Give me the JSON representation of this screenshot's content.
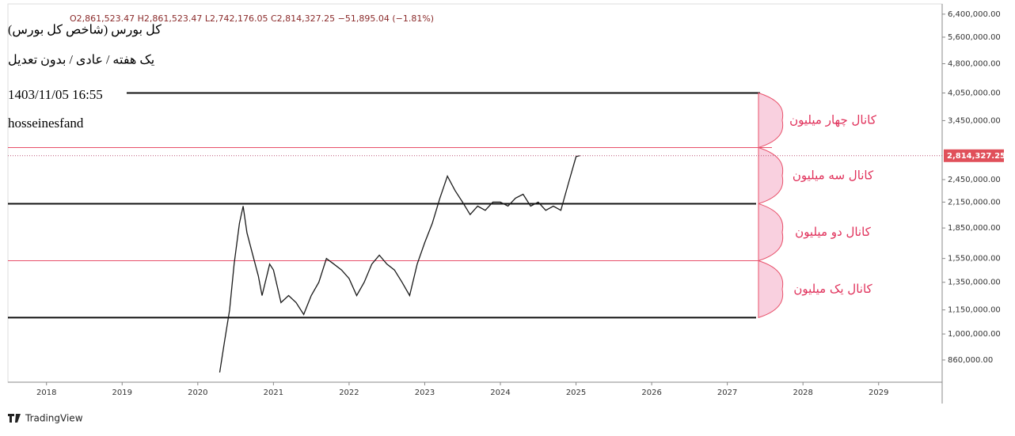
{
  "chart_data": {
    "type": "line",
    "ohlc": "O2,861,523.47  H2,861,523.47  L2,742,176.05  C2,814,327.25  −51,895.04 (−1.81%)",
    "title": "کل بورس (شاخص کل بورس)",
    "subtitle": "یک هفته / عادی / بدون تعدیل",
    "date": "1403/11/05 16:55",
    "author": "hosseinesfand",
    "brand": "TradingView",
    "log_scale": true,
    "xlim": [
      2017.49,
      2029.84
    ],
    "xticks": [
      2018,
      2019,
      2020,
      2021,
      2022,
      2023,
      2024,
      2025,
      2026,
      2027,
      2028,
      2029
    ],
    "ylim": [
      756000,
      6790000
    ],
    "yticks": [
      {
        "value": 860000,
        "label": "860,000.00"
      },
      {
        "value": 1000000,
        "label": "1,000,000.00"
      },
      {
        "value": 1150000,
        "label": "1,150,000.00"
      },
      {
        "value": 1350000,
        "label": "1,350,000.00"
      },
      {
        "value": 1550000,
        "label": "1,550,000.00"
      },
      {
        "value": 1850000,
        "label": "1,850,000.00"
      },
      {
        "value": 2150000,
        "label": "2,150,000.00"
      },
      {
        "value": 2450000,
        "label": "2,450,000.00"
      },
      {
        "value": 3450000,
        "label": "3,450,000.00"
      },
      {
        "value": 4050000,
        "label": "4,050,000.00"
      },
      {
        "value": 4800000,
        "label": "4,800,000.00"
      },
      {
        "value": 5600000,
        "label": "5,600,000.00"
      },
      {
        "value": 6400000,
        "label": "6,400,000.00"
      }
    ],
    "marker": {
      "value": 2814327.25,
      "label": "2,814,327.25"
    },
    "series": [
      {
        "name": "کل بورس",
        "color": "#1a1a1a",
        "x": [
          2020.29,
          2020.35,
          2020.42,
          2020.48,
          2020.55,
          2020.6,
          2020.65,
          2020.72,
          2020.8,
          2020.85,
          2020.95,
          2021.0,
          2021.1,
          2021.2,
          2021.3,
          2021.4,
          2021.5,
          2021.6,
          2021.7,
          2021.8,
          2021.9,
          2022.0,
          2022.1,
          2022.2,
          2022.3,
          2022.4,
          2022.5,
          2022.6,
          2022.7,
          2022.8,
          2022.9,
          2023.0,
          2023.1,
          2023.2,
          2023.3,
          2023.4,
          2023.5,
          2023.6,
          2023.7,
          2023.8,
          2023.9,
          2024.0,
          2024.1,
          2024.2,
          2024.3,
          2024.4,
          2024.5,
          2024.6,
          2024.7,
          2024.8,
          2024.9,
          2025.0,
          2025.05
        ],
        "values": [
          800000,
          950000,
          1150000,
          1500000,
          1900000,
          2100000,
          1800000,
          1600000,
          1400000,
          1250000,
          1500000,
          1450000,
          1200000,
          1250000,
          1200000,
          1120000,
          1250000,
          1350000,
          1550000,
          1500000,
          1450000,
          1380000,
          1250000,
          1350000,
          1500000,
          1580000,
          1500000,
          1450000,
          1350000,
          1250000,
          1500000,
          1700000,
          1900000,
          2200000,
          2500000,
          2300000,
          2150000,
          2000000,
          2100000,
          2050000,
          2150000,
          2150000,
          2100000,
          2200000,
          2250000,
          2100000,
          2150000,
          2050000,
          2100000,
          2050000,
          2400000,
          2800000,
          2814327.25
        ]
      }
    ],
    "levels": [
      {
        "value": 4050000,
        "color": "#111111"
      },
      {
        "value": 2950000,
        "color": "#e8506a"
      },
      {
        "value": 2130000,
        "color": "#111111"
      },
      {
        "value": 1530000,
        "color": "#e8506a"
      },
      {
        "value": 1100000,
        "color": "#111111"
      }
    ],
    "channels": [
      "کانال چهار میلیون",
      "کانال سه میلیون",
      "کانال دو میلیون",
      "کانال یک میلیون"
    ]
  }
}
